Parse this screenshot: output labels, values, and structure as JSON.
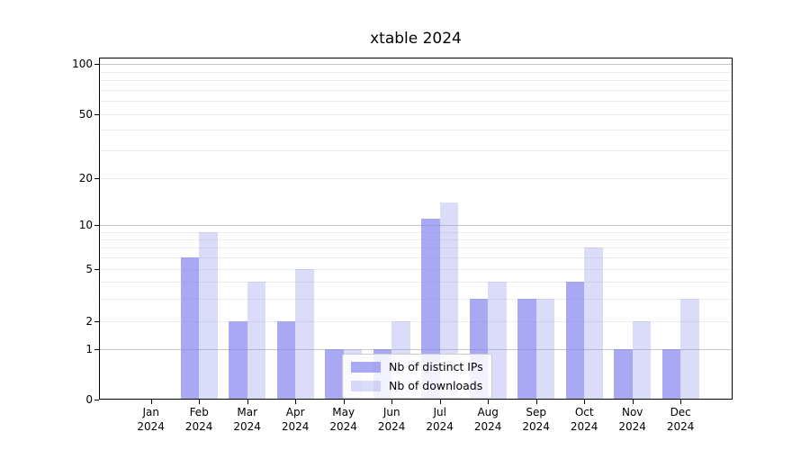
{
  "title": "xtable 2024",
  "chart_data": {
    "type": "bar",
    "title": "xtable 2024",
    "categories": [
      "Jan 2024",
      "Feb 2024",
      "Mar 2024",
      "Apr 2024",
      "May 2024",
      "Jun 2024",
      "Jul 2024",
      "Aug 2024",
      "Sep 2024",
      "Oct 2024",
      "Nov 2024",
      "Dec 2024"
    ],
    "series": [
      {
        "name": "Nb of distinct IPs",
        "values": [
          0,
          6,
          2,
          2,
          1,
          1,
          11,
          3,
          3,
          4,
          1,
          1
        ],
        "color": "rgba(136,136,238,0.72)"
      },
      {
        "name": "Nb of downloads",
        "values": [
          0,
          9,
          4,
          5,
          1,
          2,
          14,
          4,
          3,
          7,
          2,
          3
        ],
        "color": "rgba(136,136,238,0.30)"
      }
    ],
    "yticks": [
      0,
      1,
      2,
      5,
      10,
      20,
      50,
      100
    ],
    "minor_grid_values": [
      2,
      3,
      4,
      5,
      6,
      7,
      8,
      9,
      20,
      30,
      40,
      50,
      60,
      70,
      80,
      90
    ],
    "major_grid_values": [
      1,
      10,
      100
    ],
    "scale": "symlog",
    "ylim": [
      0,
      112
    ],
    "xlabel": "",
    "ylabel": "",
    "grid": "horizontal",
    "legend_position": "lower center",
    "colors": {
      "major_grid": "#c6c6c6",
      "minor_grid": "#ededed",
      "axis": "#000000",
      "bar_base": "#8888ee"
    }
  }
}
